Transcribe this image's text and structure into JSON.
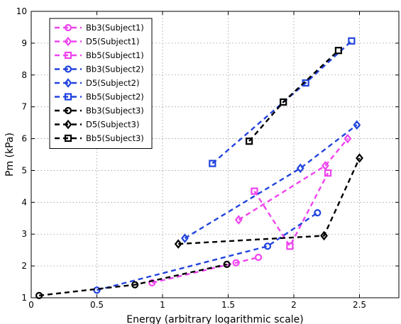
{
  "chart_data": {
    "type": "line",
    "title": "",
    "xlabel": "Energy (arbitrary logarithmic scale)",
    "ylabel": "Pm (kPa)",
    "xlim": [
      0,
      2.8
    ],
    "ylim": [
      1,
      10
    ],
    "xticks": [
      "0",
      "0.5",
      "1",
      "1.5",
      "2",
      "2.5"
    ],
    "yticks": [
      "1",
      "2",
      "3",
      "4",
      "5",
      "6",
      "7",
      "8",
      "9",
      "10"
    ],
    "grid": true,
    "legend_position": "top-left",
    "series": [
      {
        "name": "Bb3(Subject1)",
        "color": "#ee44ee",
        "marker": "circle",
        "x": [
          0.92,
          1.56,
          1.73
        ],
        "y": [
          1.47,
          2.1,
          2.27
        ]
      },
      {
        "name": "D5(Subject1)",
        "color": "#ee44ee",
        "marker": "diamond",
        "x": [
          1.58,
          2.24,
          2.41
        ],
        "y": [
          3.45,
          5.15,
          6.0
        ]
      },
      {
        "name": "Bb5(Subject1)",
        "color": "#ee44ee",
        "marker": "square",
        "x": [
          1.7,
          1.97,
          2.26
        ],
        "y": [
          4.35,
          2.62,
          4.92
        ]
      },
      {
        "name": "Bb3(Subject2)",
        "color": "#2244dd",
        "marker": "circle",
        "x": [
          0.5,
          1.8,
          2.18
        ],
        "y": [
          1.24,
          2.62,
          3.67
        ]
      },
      {
        "name": "D5(Subject2)",
        "color": "#2244dd",
        "marker": "diamond",
        "x": [
          1.17,
          2.05,
          2.48
        ],
        "y": [
          2.87,
          5.07,
          6.43
        ]
      },
      {
        "name": "Bb5(Subject2)",
        "color": "#2244dd",
        "marker": "square",
        "x": [
          1.38,
          2.09,
          2.44
        ],
        "y": [
          5.22,
          7.75,
          9.07
        ]
      },
      {
        "name": "Bb3(Subject3)",
        "color": "#000000",
        "marker": "circle",
        "x": [
          0.06,
          0.79,
          1.49
        ],
        "y": [
          1.07,
          1.41,
          2.05
        ]
      },
      {
        "name": "D5(Subject3)",
        "color": "#000000",
        "marker": "diamond",
        "x": [
          1.12,
          2.23,
          2.5
        ],
        "y": [
          2.69,
          2.95,
          5.39
        ]
      },
      {
        "name": "Bb5(Subject3)",
        "color": "#000000",
        "marker": "square",
        "x": [
          1.66,
          1.92,
          2.34
        ],
        "y": [
          5.92,
          7.15,
          8.77
        ]
      }
    ]
  }
}
